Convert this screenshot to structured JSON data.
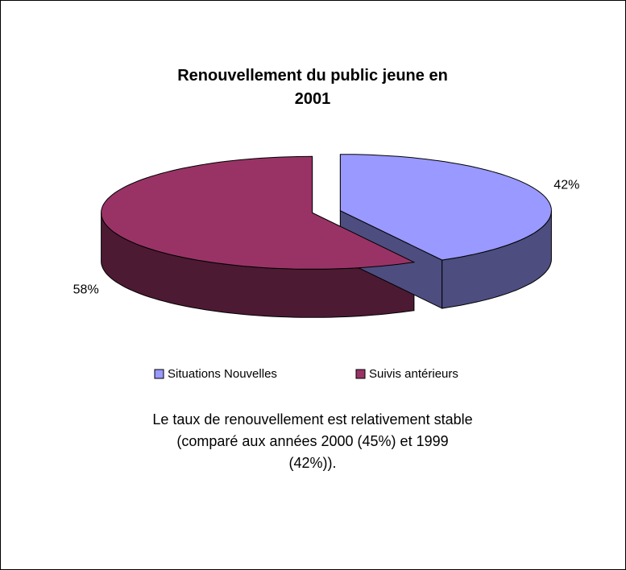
{
  "chart_data": {
    "type": "pie",
    "title": "Renouvellement du public jeune en 2001",
    "categories": [
      "Situations Nouvelles",
      "Suivis antérieurs"
    ],
    "values": [
      42,
      58
    ],
    "value_labels": [
      "42%",
      "58%"
    ],
    "colors": [
      "#9999ff",
      "#993366"
    ],
    "legend": "bottom",
    "annotation": "Le taux de renouvellement est relativement stable (comparé aux années 2000 (45%) et 1999 (42%))."
  }
}
